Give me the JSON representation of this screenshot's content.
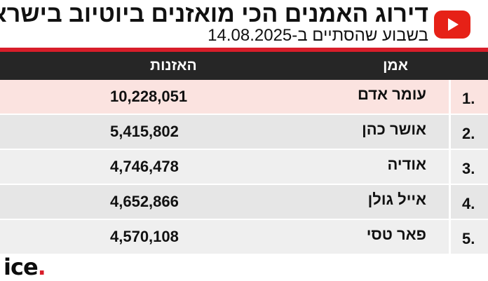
{
  "header": {
    "title": "דירוג האמנים הכי מואזנים ביוטיוב בישראל",
    "subtitle": "בשבוע שהסתיים ב-14.08.2025",
    "logo_icon": "youtube-play-icon"
  },
  "colors": {
    "accent_red": "#d81e2a",
    "header_bar": "#262626",
    "highlight_row": "#fbe3e0",
    "row_gray": "#e6e6e6",
    "row_light": "#efefef"
  },
  "chart_data": {
    "type": "table",
    "columns": [
      "אמן",
      "האזנות"
    ],
    "rows": [
      {
        "rank": "1.",
        "artist": "עומר אדם",
        "listens": "10,228,051"
      },
      {
        "rank": "2.",
        "artist": "אושר כהן",
        "listens": "5,415,802"
      },
      {
        "rank": "3.",
        "artist": "אודיה",
        "listens": "4,746,478"
      },
      {
        "rank": "4.",
        "artist": "אייל גולן",
        "listens": "4,652,866"
      },
      {
        "rank": "5.",
        "artist": "פאר טסי",
        "listens": "4,570,108"
      }
    ]
  },
  "footer": {
    "brand": "ice",
    "brand_dot": "."
  }
}
